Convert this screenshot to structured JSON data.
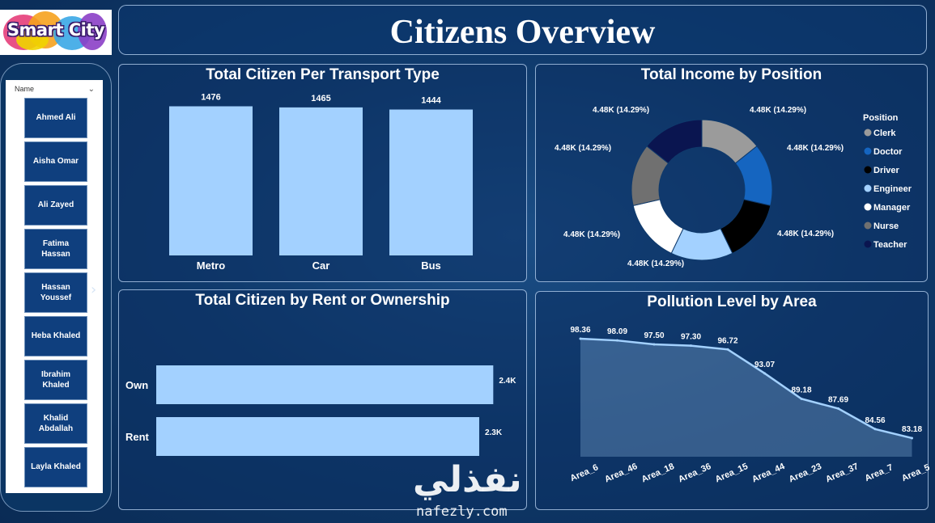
{
  "logo": {
    "text": "Smart City"
  },
  "page": {
    "title": "Citizens Overview"
  },
  "slicer": {
    "header": "Name",
    "names": [
      "Ahmed Ali",
      "Aisha Omar",
      "Ali Zayed",
      "Fatima Hassan",
      "Hassan Youssef",
      "Heba Khaled",
      "Ibrahim Khaled",
      "Khalid Abdallah",
      "Layla Khaled"
    ]
  },
  "colors": {
    "bar": "#a3d1ff",
    "panel_border": "#bed7f5",
    "background": "#0f3a6c"
  },
  "chart_data": [
    {
      "id": "transport",
      "type": "bar",
      "title": "Total Citizen Per Transport Type",
      "categories": [
        "Metro",
        "Car",
        "Bus"
      ],
      "values": [
        1476,
        1465,
        1444
      ],
      "data_labels": [
        "1476",
        "1465",
        "1444"
      ],
      "ylim": [
        0,
        1600
      ]
    },
    {
      "id": "income",
      "type": "pie",
      "variant": "donut",
      "title": "Total Income by Position",
      "legend_title": "Position",
      "legend_position": "right",
      "categories": [
        "Clerk",
        "Doctor",
        "Driver",
        "Engineer",
        "Manager",
        "Nurse",
        "Teacher"
      ],
      "values": [
        4.48,
        4.48,
        4.48,
        4.48,
        4.48,
        4.48,
        4.48
      ],
      "value_unit": "K",
      "data_labels": [
        "4.48K (14.29%)",
        "4.48K (14.29%)",
        "4.48K (14.29%)",
        "4.48K (14.29%)",
        "4.48K (14.29%)",
        "4.48K (14.29%)",
        "4.48K (14.29%)"
      ],
      "colors": [
        "#9b9b9b",
        "#1565c0",
        "#000000",
        "#a3d1ff",
        "#ffffff",
        "#707070",
        "#0a1550"
      ]
    },
    {
      "id": "rent",
      "type": "bar",
      "orientation": "horizontal",
      "title": "Total Citizen by Rent or Ownership",
      "categories": [
        "Own",
        "Rent"
      ],
      "values": [
        2400,
        2300
      ],
      "data_labels": [
        "2.4K",
        "2.3K"
      ],
      "xlim": [
        0,
        2450
      ]
    },
    {
      "id": "pollution",
      "type": "area",
      "title": "Pollution Level by Area",
      "categories": [
        "Area_6",
        "Area_46",
        "Area_18",
        "Area_36",
        "Area_15",
        "Area_44",
        "Area_23",
        "Area_37",
        "Area_7",
        "Area_5"
      ],
      "values": [
        98.36,
        98.09,
        97.5,
        97.3,
        96.72,
        93.07,
        89.18,
        87.69,
        84.56,
        83.18
      ],
      "data_labels": [
        "98.36",
        "98.09",
        "97.50",
        "97.30",
        "96.72",
        "93.07",
        "89.18",
        "87.69",
        "84.56",
        "83.18"
      ],
      "ylim": [
        0,
        100
      ]
    }
  ],
  "watermark": {
    "arabic": "نفذلي",
    "url": "nafezly.com"
  }
}
